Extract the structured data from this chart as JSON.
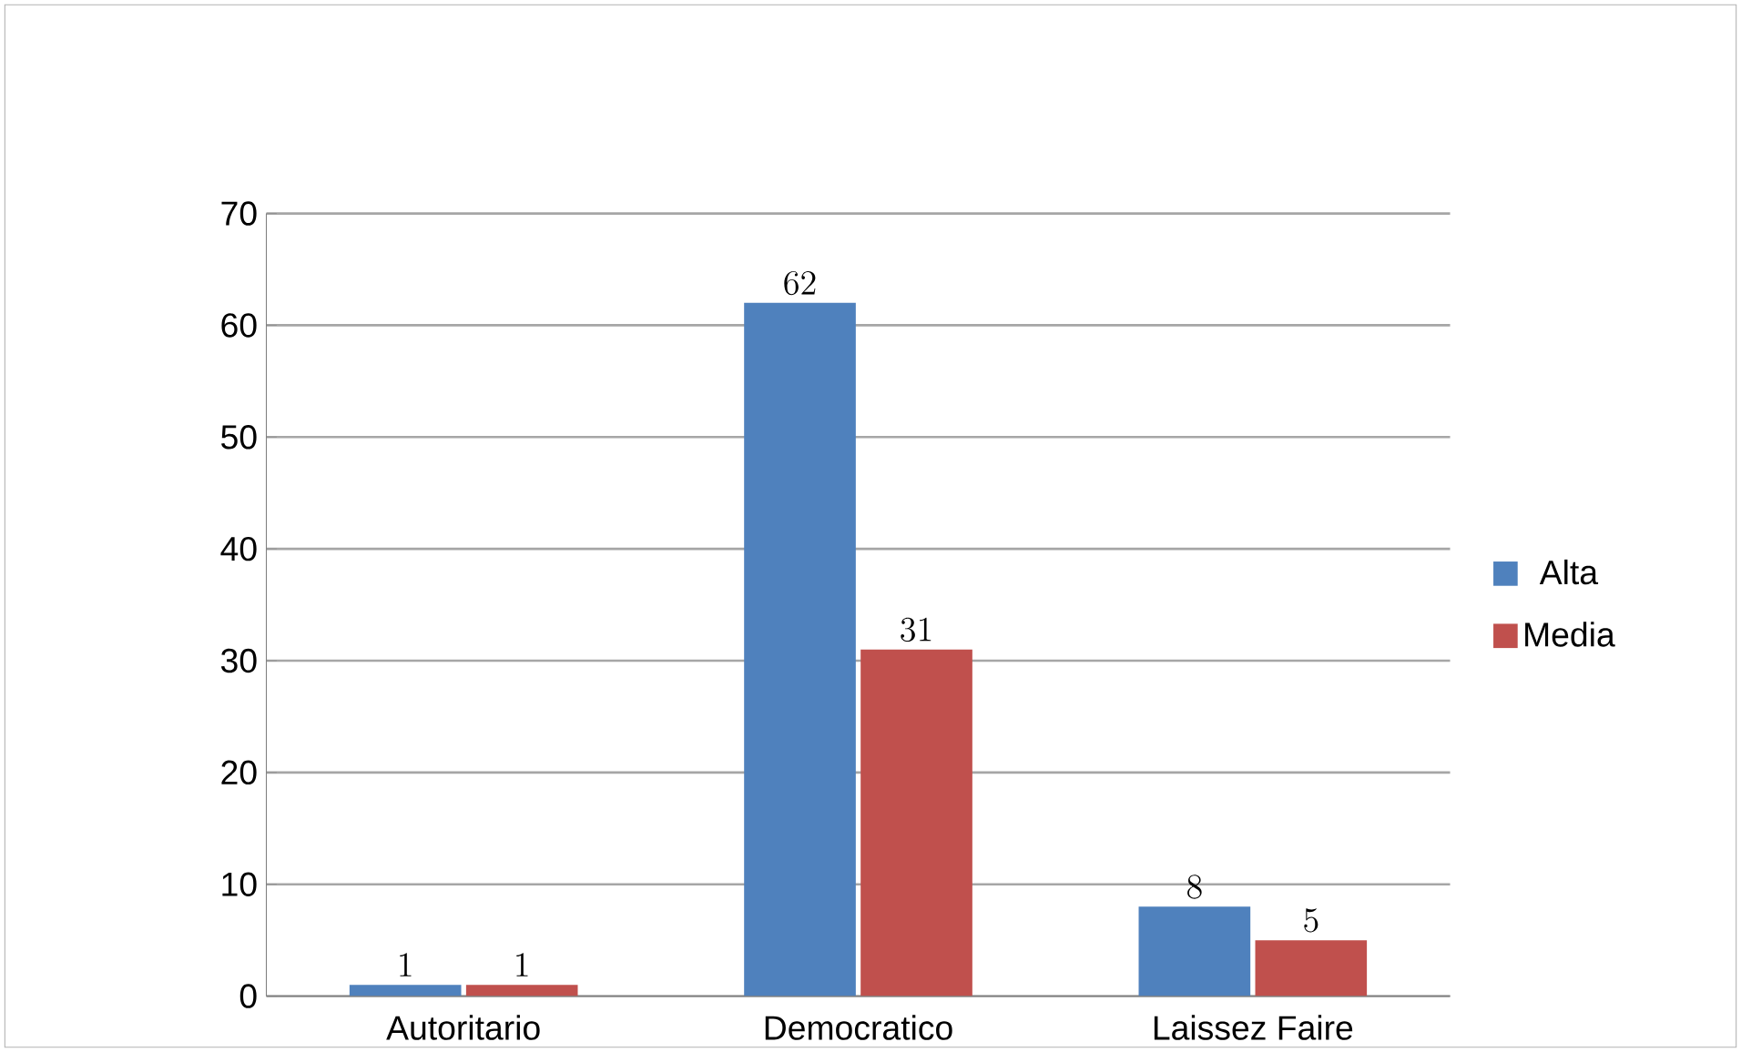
{
  "chart_data": {
    "type": "bar",
    "categories": [
      "Autoritario",
      "Democratico",
      "Laissez Faire"
    ],
    "series": [
      {
        "name": "Alta",
        "color": "#4f81bd",
        "values": [
          1,
          62,
          8
        ]
      },
      {
        "name": "Media",
        "color": "#c0504d",
        "values": [
          1,
          31,
          5
        ]
      }
    ],
    "ylim": [
      0,
      70
    ],
    "yticks": [
      0,
      10,
      20,
      30,
      40,
      50,
      60,
      70
    ],
    "grid": "y",
    "legend": "right",
    "data_labels": true
  }
}
